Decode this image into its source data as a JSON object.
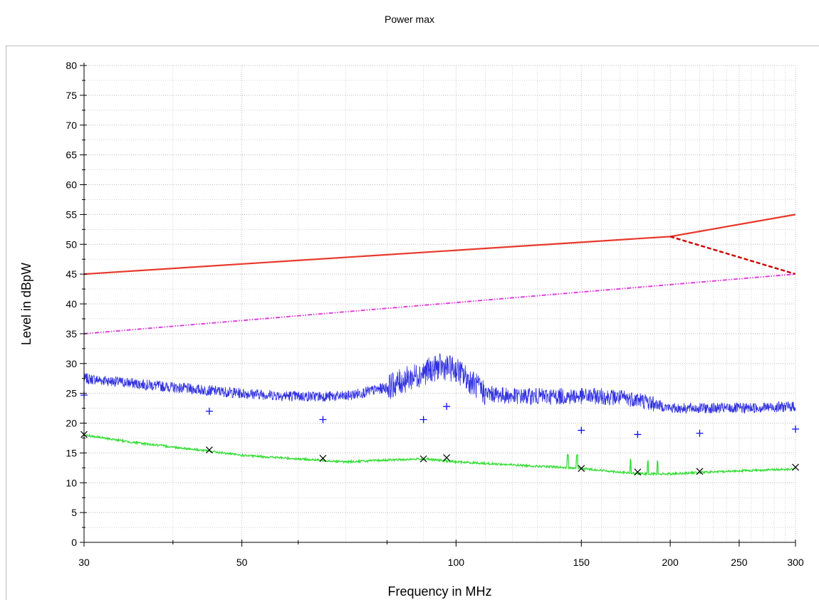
{
  "chart_data": {
    "type": "line",
    "title": "Power max",
    "xlabel": "Frequency in MHz",
    "ylabel": "Level in dBpW",
    "xlim": [
      30,
      300
    ],
    "ylim": [
      0,
      80
    ],
    "x_ticks": [
      30,
      50,
      100,
      150,
      200,
      250,
      300
    ],
    "x_minor_ticks": [
      40,
      60,
      70,
      80,
      90,
      110,
      120,
      130,
      140,
      160,
      170,
      180,
      190,
      210,
      220,
      230,
      240,
      260,
      270,
      280,
      290
    ],
    "x_scale": "log",
    "y_ticks": [
      0,
      5,
      10,
      15,
      20,
      25,
      30,
      35,
      40,
      45,
      50,
      55,
      60,
      65,
      70,
      75,
      80
    ],
    "grid": true,
    "colors": {
      "limit": "#e8392c",
      "limit_dashed": "#cc0000",
      "limit_av": "#e040e0",
      "peak": "#3030e0",
      "average": "#33dd33",
      "peak_markers": "#1010ff",
      "avg_markers": "#000000",
      "grid": "#b8b8b8"
    },
    "series": [
      {
        "style": "solid",
        "x": [
          30,
          200,
          300
        ],
        "y": [
          45,
          51.3,
          55
        ]
      },
      {
        "style": "dashed",
        "x": [
          200,
          300
        ],
        "y": [
          51.3,
          45
        ]
      },
      {
        "style": "dash-dot",
        "x": [
          30,
          300
        ],
        "y": [
          35,
          45
        ]
      },
      {
        "style": "noisy",
        "x": [
          30,
          40,
          50,
          60,
          70,
          80,
          90,
          95,
          100,
          110,
          120,
          140,
          160,
          180,
          200,
          220,
          250,
          300
        ],
        "y": [
          27.5,
          26,
          25,
          24.5,
          24.5,
          26,
          28.5,
          29.5,
          29,
          25,
          24.5,
          24.5,
          24.5,
          24,
          22.5,
          22.5,
          22.5,
          22.8
        ]
      },
      {
        "style": "noisy",
        "x": [
          30,
          35,
          40,
          45,
          50,
          60,
          70,
          80,
          90,
          100,
          120,
          150,
          180,
          200,
          250,
          300
        ],
        "y": [
          18,
          16.8,
          16,
          15.3,
          14.6,
          14,
          13.5,
          13.8,
          14,
          13.5,
          13,
          12.4,
          11.5,
          11.5,
          12,
          12.3
        ]
      },
      {
        "style": "markers-plus",
        "x": [
          30,
          45,
          65,
          90,
          97,
          150,
          180,
          220,
          300
        ],
        "y": [
          24.7,
          22,
          20.6,
          20.6,
          22.8,
          18.8,
          18.1,
          18.3,
          19
        ]
      },
      {
        "style": "markers-x",
        "x": [
          30,
          45,
          65,
          90,
          97,
          150,
          180,
          220,
          300
        ],
        "y": [
          18.1,
          15.5,
          14.1,
          14,
          14.2,
          12.4,
          11.8,
          11.9,
          12.6
        ]
      }
    ]
  }
}
